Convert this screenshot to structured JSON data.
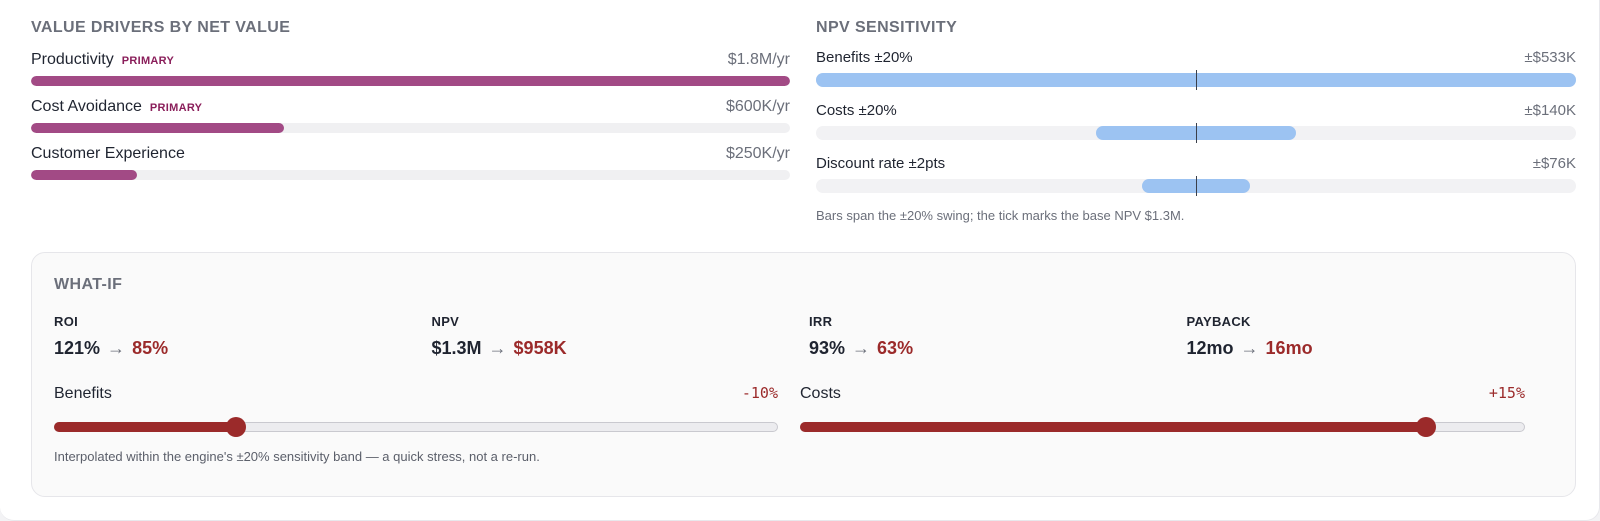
{
  "drivers": {
    "title": "VALUE DRIVERS BY NET VALUE",
    "items": [
      {
        "name": "Productivity",
        "tag": "PRIMARY",
        "value": "$1.8M/yr",
        "fraction": 1.0
      },
      {
        "name": "Cost Avoidance",
        "tag": "PRIMARY",
        "value": "$600K/yr",
        "fraction": 0.333
      },
      {
        "name": "Customer Experience",
        "tag": "",
        "value": "$250K/yr",
        "fraction": 0.139
      }
    ],
    "bar_color": "#a24a85"
  },
  "sensitivity": {
    "title": "NPV SENSITIVITY",
    "base_npv_k": 1300,
    "items": [
      {
        "label": "Benefits ±20%",
        "value": "±$533K",
        "swing_k": 533
      },
      {
        "label": "Costs ±20%",
        "value": "±$140K",
        "swing_k": 140
      },
      {
        "label": "Discount rate ±2pts",
        "value": "±$76K",
        "swing_k": 76
      }
    ],
    "note": "Bars span the ±20% swing; the tick marks the base NPV $1.3M.",
    "bar_color": "#9cc3f2"
  },
  "whatif": {
    "title": "WHAT-IF",
    "metrics": [
      {
        "label": "ROI",
        "before": "121%",
        "after": "85%"
      },
      {
        "label": "NPV",
        "before": "$1.3M",
        "after": "$958K"
      },
      {
        "label": "IRR",
        "before": "93%",
        "after": "63%"
      },
      {
        "label": "PAYBACK",
        "before": "12mo",
        "after": "16mo"
      }
    ],
    "arrow": "→",
    "sliders": [
      {
        "label": "Benefits",
        "value_text": "-10%",
        "level": 0.25
      },
      {
        "label": "Costs",
        "value_text": "+15%",
        "level": 0.865
      }
    ],
    "note": "Interpolated within the engine's ±20% sensitivity band — a quick stress, not a re-run.",
    "accent": "#9b2a2a"
  }
}
